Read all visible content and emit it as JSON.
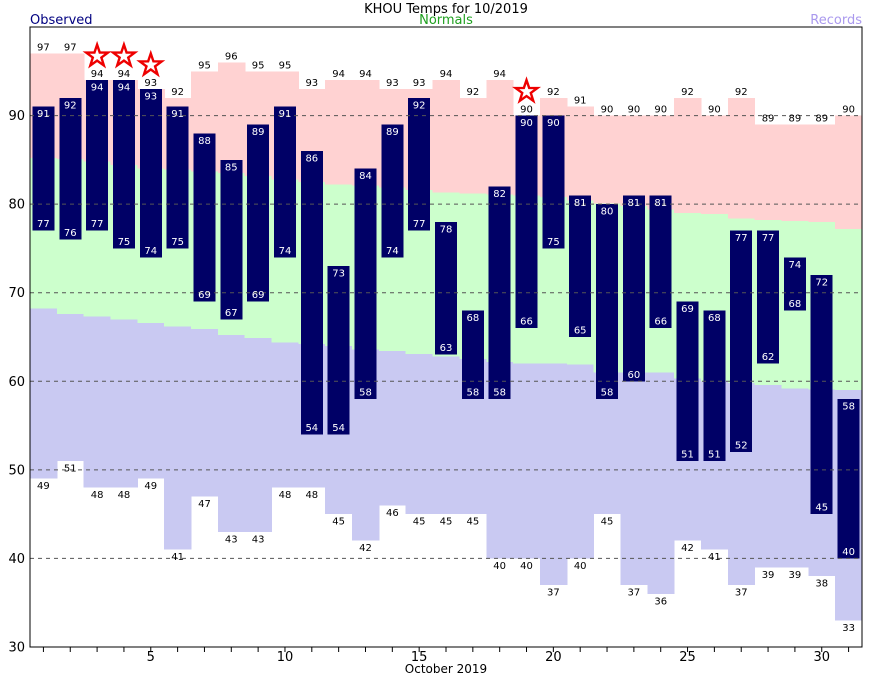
{
  "header": {
    "title": "KHOU Temps for 10/2019",
    "legend": {
      "observed": "Observed",
      "normals": "Normals",
      "records": "Records"
    }
  },
  "colors": {
    "observed_bar": "#000066",
    "record_high_band": "#ffd2d2",
    "normal_band": "#ccffcc",
    "record_low_band": "#c9c9f2",
    "observed_legend_text": "#000080",
    "normals_legend_text": "#1fa01f",
    "records_legend_text": "#aa99ee",
    "star_outline": "#ee0000",
    "grid_line": "#555555",
    "bar_value_text": "#ffffff",
    "record_value_text": "#000000"
  },
  "chart_data": {
    "type": "bar",
    "title": "KHOU Temps for 10/2019",
    "xlabel": "October 2019",
    "ylabel": "",
    "x": [
      1,
      2,
      3,
      4,
      5,
      6,
      7,
      8,
      9,
      10,
      11,
      12,
      13,
      14,
      15,
      16,
      17,
      18,
      19,
      20,
      21,
      22,
      23,
      24,
      25,
      26,
      27,
      28,
      29,
      30,
      31
    ],
    "xticks": [
      5,
      10,
      15,
      20,
      25,
      30
    ],
    "yticks": [
      30,
      40,
      50,
      60,
      70,
      80,
      90
    ],
    "ylim": [
      30,
      100
    ],
    "grid": "horizontal dashed lines at 40-90",
    "legend_position": "top",
    "series": [
      {
        "name": "Record High",
        "values": [
          97,
          97,
          94,
          94,
          93,
          92,
          95,
          96,
          95,
          95,
          93,
          94,
          94,
          93,
          93,
          94,
          92,
          94,
          90,
          92,
          91,
          90,
          90,
          90,
          92,
          90,
          92,
          89,
          89,
          89,
          90
        ]
      },
      {
        "name": "Observed High",
        "values": [
          91,
          92,
          94,
          94,
          93,
          91,
          88,
          85,
          89,
          91,
          86,
          73,
          84,
          89,
          92,
          78,
          68,
          82,
          90,
          90,
          81,
          80,
          81,
          81,
          69,
          68,
          77,
          77,
          74,
          72,
          58
        ]
      },
      {
        "name": "Observed Low",
        "values": [
          77,
          76,
          77,
          75,
          74,
          75,
          69,
          67,
          69,
          74,
          54,
          54,
          58,
          74,
          77,
          63,
          58,
          58,
          66,
          75,
          65,
          58,
          60,
          66,
          51,
          51,
          52,
          62,
          68,
          45,
          40
        ]
      },
      {
        "name": "Record Low",
        "values": [
          49,
          51,
          48,
          48,
          49,
          41,
          47,
          43,
          43,
          48,
          48,
          45,
          42,
          46,
          45,
          45,
          45,
          40,
          40,
          37,
          40,
          45,
          37,
          36,
          42,
          41,
          37,
          39,
          39,
          38,
          33
        ]
      },
      {
        "name": "Normal High (estimated from band edges)",
        "values": [
          85.2,
          85.1,
          84.8,
          84.4,
          84.0,
          83.9,
          83.7,
          83.5,
          83.2,
          82.8,
          82.5,
          82.2,
          82.1,
          81.9,
          81.6,
          81.3,
          81.2,
          81.1,
          81.0,
          80.8,
          80.4,
          80.1,
          79.8,
          79.4,
          79.0,
          78.9,
          78.4,
          78.2,
          78.1,
          78.0,
          77.2
        ]
      },
      {
        "name": "Normal Low (estimated from band edges)",
        "values": [
          68.2,
          67.6,
          67.3,
          67.0,
          66.6,
          66.2,
          65.9,
          65.2,
          64.9,
          64.4,
          64.2,
          64.0,
          63.6,
          63.4,
          63.1,
          62.8,
          62.5,
          62.2,
          62.0,
          62.0,
          61.9,
          61.0,
          61.0,
          61.0,
          60.3,
          60.0,
          59.8,
          59.6,
          59.2,
          59.1,
          59.0
        ]
      }
    ],
    "record_event_days": [
      3,
      4,
      5,
      19
    ],
    "record_event_marker": "red star outline above record-high label"
  }
}
